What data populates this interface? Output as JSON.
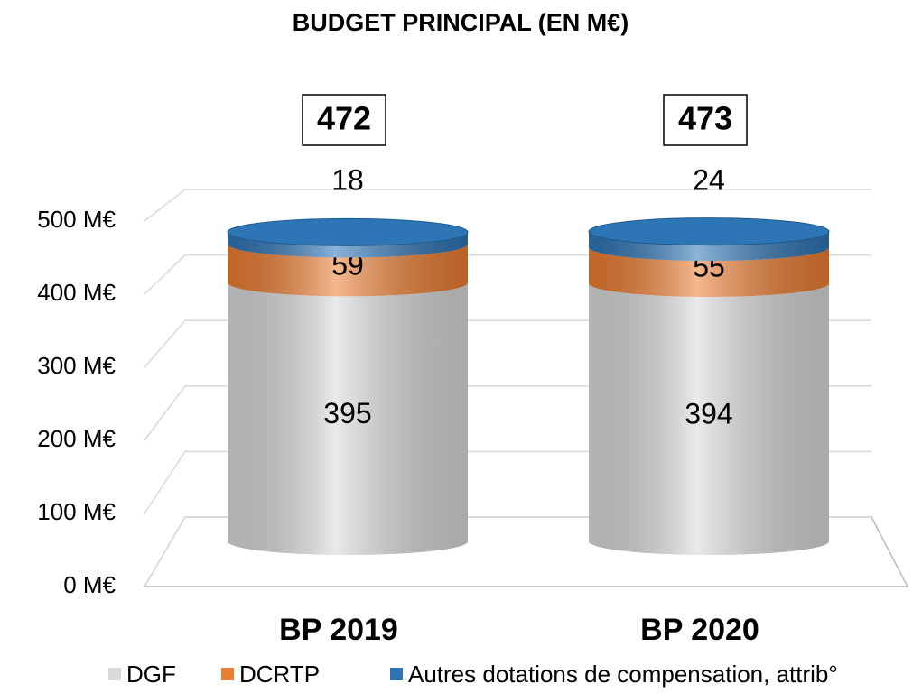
{
  "chart_data": {
    "type": "bar3d-stacked",
    "title": "BUDGET PRINCIPAL (EN M€)",
    "categories": [
      "BP 2019",
      "BP 2020"
    ],
    "totals": [
      472,
      473
    ],
    "series": [
      {
        "name": "DGF",
        "color": "#d9d9d9",
        "values": [
          395,
          394
        ]
      },
      {
        "name": "DCRTP",
        "color": "#ed7d31",
        "values": [
          59,
          55
        ]
      },
      {
        "name": "Autres dotations de compensation, attrib°",
        "color": "#2e75b6",
        "values": [
          18,
          24
        ]
      }
    ],
    "ylim": [
      0,
      500
    ],
    "yticks": [
      {
        "value": 0,
        "label": "0 M€"
      },
      {
        "value": 100,
        "label": "100 M€"
      },
      {
        "value": 200,
        "label": "200 M€"
      },
      {
        "value": 300,
        "label": "300 M€"
      },
      {
        "value": 400,
        "label": "400 M€"
      },
      {
        "value": 500,
        "label": "500 M€"
      }
    ],
    "grid": true
  }
}
